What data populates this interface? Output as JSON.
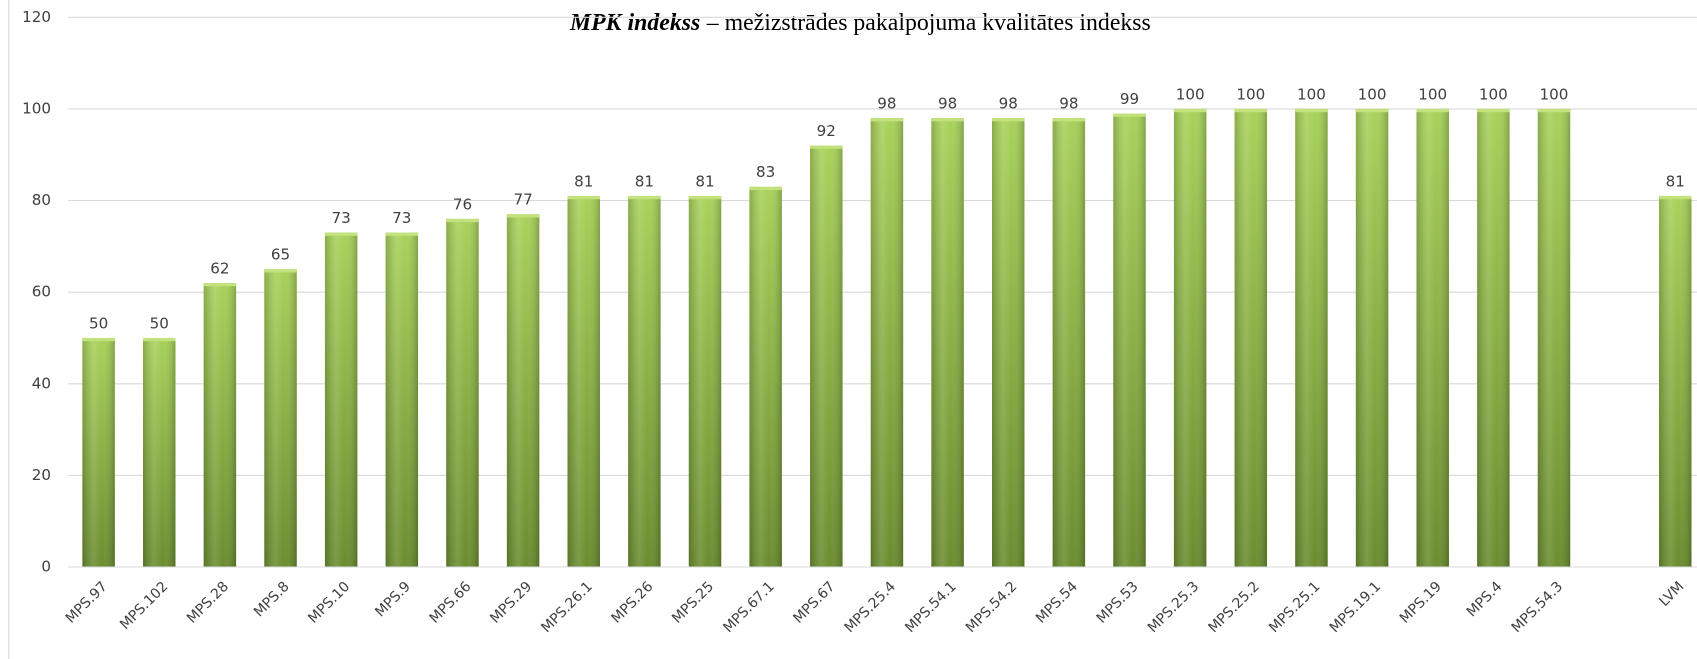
{
  "chart_data": {
    "type": "bar",
    "title_parts": [
      "MPK indekss",
      "– mežizstrādes pakalpojuma kvalitātes indekss"
    ],
    "categories": [
      "MPS.97",
      "MPS.102",
      "MPS.28",
      "MPS.8",
      "MPS.10",
      "MPS.9",
      "MPS.66",
      "MPS.29",
      "MPS.26.1",
      "MPS.26",
      "MPS.25",
      "MPS.67.1",
      "MPS.67",
      "MPS.25.4",
      "MPS.54.1",
      "MPS.54.2",
      "MPS.54",
      "MPS.53",
      "MPS.25.3",
      "MPS.25.2",
      "MPS.25.1",
      "MPS.19.1",
      "MPS.19",
      "MPS.4",
      "MPS.54.3",
      null,
      "LVM"
    ],
    "values": [
      50,
      50,
      62,
      65,
      73,
      73,
      76,
      77,
      81,
      81,
      81,
      83,
      92,
      98,
      98,
      98,
      98,
      99,
      100,
      100,
      100,
      100,
      100,
      100,
      100,
      null,
      81
    ],
    "color": "#8fb843",
    "ylim": [
      0,
      120
    ],
    "yticks": [
      0,
      20,
      40,
      60,
      80,
      100,
      120
    ],
    "grid": true
  }
}
